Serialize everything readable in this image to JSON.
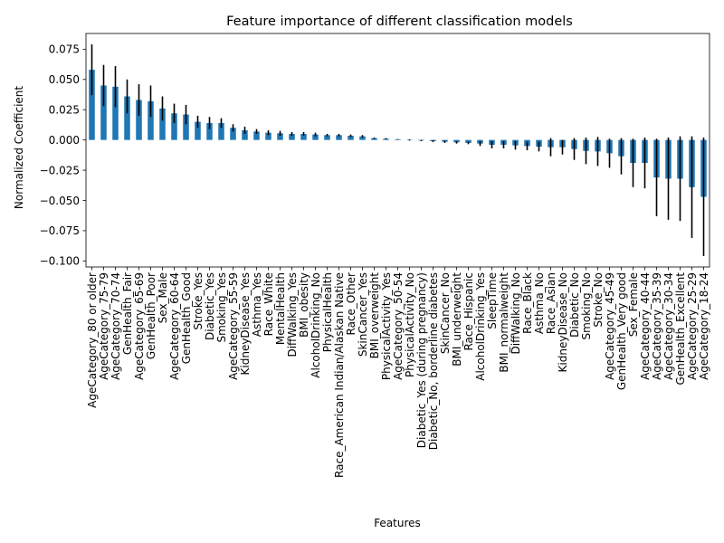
{
  "chart_data": {
    "type": "bar",
    "title": "Feature importance of different classification models",
    "xlabel": "Features",
    "ylabel": "Normalized Coefficient",
    "ylim": [
      -0.105,
      0.088
    ],
    "yticks": [
      -0.1,
      -0.075,
      -0.05,
      -0.025,
      0.0,
      0.025,
      0.05,
      0.075
    ],
    "ytick_labels": [
      "−0.100",
      "−0.075",
      "−0.050",
      "−0.025",
      "0.000",
      "0.025",
      "0.050",
      "0.075"
    ],
    "grid": false,
    "bar_color": "#1f77b4",
    "error_color": "#000000",
    "categories": [
      "AgeCategory_80 or older",
      "AgeCategory_75-79",
      "AgeCategory_70-74",
      "GenHealth_Fair",
      "AgeCategory_65-69",
      "GenHealth_Poor",
      "Sex_Male",
      "AgeCategory_60-64",
      "GenHealth_Good",
      "Stroke_Yes",
      "Diabetic_Yes",
      "Smoking_Yes",
      "AgeCategory_55-59",
      "KidneyDisease_Yes",
      "Asthma_Yes",
      "Race_White",
      "MentalHealth",
      "DiffWalking_Yes",
      "BMI_obesity",
      "AlcoholDrinking_No",
      "PhysicalHealth",
      "Race_American Indian/Alaskan Native",
      "Race_Other",
      "SkinCancer_Yes",
      "BMI_overweight",
      "PhysicalActivity_Yes",
      "AgeCategory_50-54",
      "PhysicalActivity_No",
      "Diabetic_Yes (during pregnancy)",
      "Diabetic_No, borderline diabetes",
      "SkinCancer_No",
      "BMI_underweight",
      "Race_Hispanic",
      "AlcoholDrinking_Yes",
      "SleepTime",
      "BMI_normalweight",
      "DiffWalking_No",
      "Race_Black",
      "Asthma_No",
      "Race_Asian",
      "KidneyDisease_No",
      "Diabetic_No",
      "Smoking_No",
      "Stroke_No",
      "AgeCategory_45-49",
      "GenHealth_Very good",
      "Sex_Female",
      "AgeCategory_40-44",
      "AgeCategory_35-39",
      "AgeCategory_30-34",
      "GenHealth_Excellent",
      "AgeCategory_25-29",
      "AgeCategory_18-24"
    ],
    "values": [
      0.058,
      0.045,
      0.044,
      0.036,
      0.033,
      0.032,
      0.026,
      0.022,
      0.021,
      0.015,
      0.014,
      0.014,
      0.01,
      0.008,
      0.007,
      0.006,
      0.0055,
      0.005,
      0.005,
      0.0045,
      0.004,
      0.004,
      0.0035,
      0.003,
      0.0015,
      0.001,
      0.0005,
      0.0,
      -0.0005,
      -0.001,
      -0.0015,
      -0.002,
      -0.0025,
      -0.003,
      -0.004,
      -0.004,
      -0.0045,
      -0.005,
      -0.0055,
      -0.006,
      -0.006,
      -0.0075,
      -0.009,
      -0.0095,
      -0.011,
      -0.0135,
      -0.019,
      -0.019,
      -0.031,
      -0.032,
      -0.032,
      -0.039,
      -0.047
    ],
    "errors": [
      0.021,
      0.017,
      0.017,
      0.014,
      0.013,
      0.013,
      0.01,
      0.008,
      0.008,
      0.005,
      0.005,
      0.004,
      0.003,
      0.003,
      0.002,
      0.002,
      0.002,
      0.0015,
      0.0015,
      0.0015,
      0.001,
      0.001,
      0.001,
      0.001,
      0.0005,
      0.0005,
      0.0003,
      0.0005,
      0.0005,
      0.0008,
      0.001,
      0.001,
      0.001,
      0.002,
      0.003,
      0.003,
      0.0035,
      0.0035,
      0.004,
      0.0075,
      0.006,
      0.009,
      0.011,
      0.012,
      0.012,
      0.015,
      0.02,
      0.021,
      0.032,
      0.034,
      0.035,
      0.042,
      0.049
    ]
  }
}
